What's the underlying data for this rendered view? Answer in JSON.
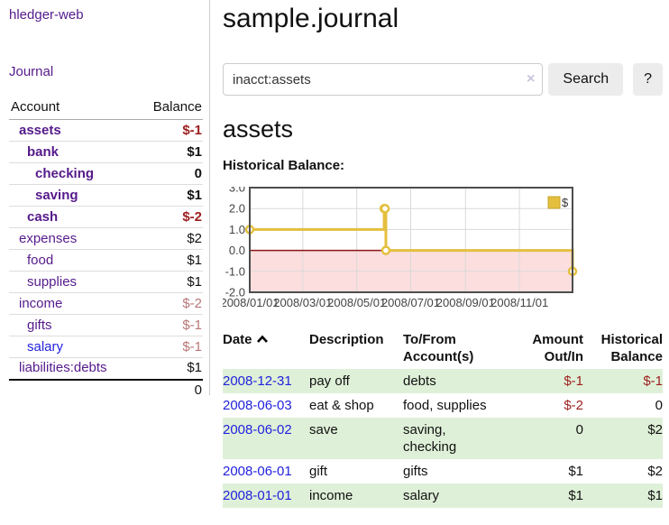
{
  "colors": {
    "link_purple": "#551a8b",
    "link_blue": "#2222dd",
    "negative_red": "#9d1f1f",
    "negative_rose": "#b97676",
    "row_green": "#dff0d8",
    "series_gold": "#e4bf3e",
    "negative_region_pink": "#fcdede",
    "zero_line_red": "#8b1414"
  },
  "app": {
    "title": "hledger-web",
    "journal_link": "Journal"
  },
  "sidebar": {
    "header": {
      "account": "Account",
      "balance": "Balance"
    },
    "accounts": [
      {
        "name": "assets",
        "balance": "$-1"
      },
      {
        "name": "bank",
        "balance": "$1"
      },
      {
        "name": "checking",
        "balance": "0"
      },
      {
        "name": "saving",
        "balance": "$1"
      },
      {
        "name": "cash",
        "balance": "$-2"
      },
      {
        "name": "expenses",
        "balance": "$2"
      },
      {
        "name": "food",
        "balance": "$1"
      },
      {
        "name": "supplies",
        "balance": "$1"
      },
      {
        "name": "income",
        "balance": "$-2"
      },
      {
        "name": "gifts",
        "balance": "$-1"
      },
      {
        "name": "salary",
        "balance": "$-1"
      },
      {
        "name": "liabilities:debts",
        "balance": "$1"
      }
    ],
    "total": "0"
  },
  "main": {
    "title": "sample.journal",
    "search": {
      "value": "inacct:assets",
      "clear_icon": "×",
      "button": "Search",
      "help_button": "?"
    },
    "account_heading": "assets",
    "section_heading": "Historical Balance:"
  },
  "chart_data": {
    "type": "line",
    "step": true,
    "title": "Historical Balance",
    "x_range": [
      "2008-01-01",
      "2008-12-31"
    ],
    "ylim": [
      -2,
      3
    ],
    "y_ticks": [
      3,
      2,
      1,
      0,
      -1,
      -2
    ],
    "x_ticks": [
      "2008/01/01",
      "2008/03/01",
      "2008/05/01",
      "2008/07/01",
      "2008/09/01",
      "2008/11/01"
    ],
    "series": [
      {
        "name": "$",
        "color": "#e4bf3e",
        "points": [
          [
            "2008-01-01",
            1
          ],
          [
            "2008-06-01",
            2
          ],
          [
            "2008-06-02",
            2
          ],
          [
            "2008-06-03",
            0
          ],
          [
            "2008-12-31",
            -1
          ]
        ]
      }
    ],
    "grid": true,
    "legend_position": "top-right",
    "negative_region_color": "#fcdede",
    "zero_line_color": "#8b1414"
  },
  "register": {
    "headers": {
      "date": "Date",
      "description": "Description",
      "accounts": "To/From Account(s)",
      "amount": "Amount Out/In",
      "balance": "Historical Balance"
    },
    "sort_icon": "chevron-up",
    "rows": [
      {
        "date": "2008-12-31",
        "description": "pay off",
        "accounts": "debts",
        "amount": "$-1",
        "balance": "$-1"
      },
      {
        "date": "2008-06-03",
        "description": "eat & shop",
        "accounts": "food, supplies",
        "amount": "$-2",
        "balance": "0"
      },
      {
        "date": "2008-06-02",
        "description": "save",
        "accounts": "saving,\nchecking",
        "amount": "0",
        "balance": "$2"
      },
      {
        "date": "2008-06-01",
        "description": "gift",
        "accounts": "gifts",
        "amount": "$1",
        "balance": "$2"
      },
      {
        "date": "2008-01-01",
        "description": "income",
        "accounts": "salary",
        "amount": "$1",
        "balance": "$1"
      }
    ]
  }
}
